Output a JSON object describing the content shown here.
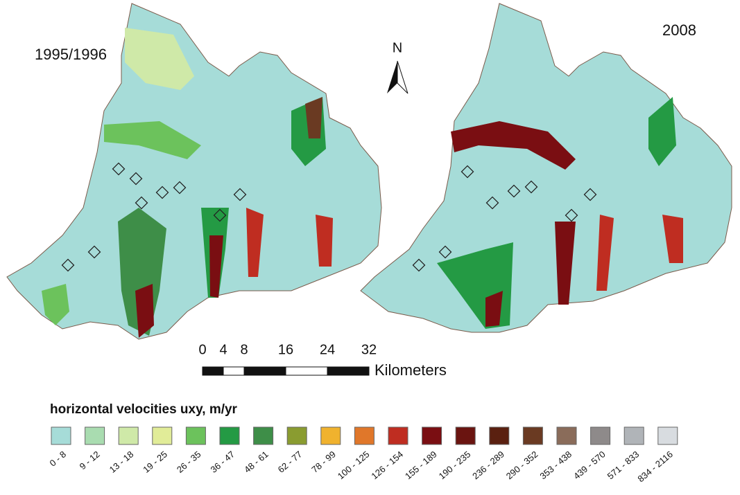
{
  "panels": [
    {
      "label": "1995/1996"
    },
    {
      "label": "2008"
    }
  ],
  "north_arrow": {
    "label": "N"
  },
  "scale_bar": {
    "ticks": [
      0,
      4,
      8,
      16,
      24,
      32
    ],
    "unit": "Kilometers"
  },
  "legend": {
    "title": "horizontal velocities uxy, m/yr",
    "classes": [
      {
        "label": "0 - 8",
        "color": "#a6dcd8"
      },
      {
        "label": "9 - 12",
        "color": "#a9dcb0"
      },
      {
        "label": "13 - 18",
        "color": "#cfe9a8"
      },
      {
        "label": "19 - 25",
        "color": "#e1ec98"
      },
      {
        "label": "26 - 35",
        "color": "#6cc25c"
      },
      {
        "label": "36 - 47",
        "color": "#249a44"
      },
      {
        "label": "48 - 61",
        "color": "#3e8e48"
      },
      {
        "label": "62 - 77",
        "color": "#8a9c30"
      },
      {
        "label": "78 - 99",
        "color": "#f0b22e"
      },
      {
        "label": "100 - 125",
        "color": "#e0772a"
      },
      {
        "label": "126 - 154",
        "color": "#bf2d21"
      },
      {
        "label": "155 - 189",
        "color": "#7a0e12"
      },
      {
        "label": "190 - 235",
        "color": "#6a1410"
      },
      {
        "label": "236 - 289",
        "color": "#5a2010"
      },
      {
        "label": "290 - 352",
        "color": "#6a3a22"
      },
      {
        "label": "353 - 438",
        "color": "#8a6c5a"
      },
      {
        "label": "439 - 570",
        "color": "#8e8a8a"
      },
      {
        "label": "571 - 833",
        "color": "#b0b4b8"
      },
      {
        "label": "834 - 2116",
        "color": "#d8dce0"
      }
    ]
  }
}
